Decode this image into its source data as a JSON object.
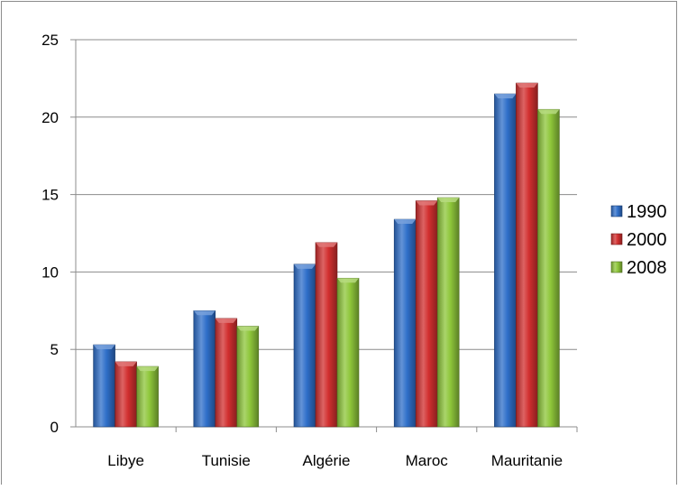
{
  "chart_data": {
    "type": "bar",
    "title": "",
    "xlabel": "",
    "ylabel": "",
    "categories": [
      "Libye",
      "Tunisie",
      "Algérie",
      "Maroc",
      "Mauritanie"
    ],
    "series": [
      {
        "name": "1990",
        "values": [
          5.3,
          7.5,
          10.5,
          13.4,
          21.5
        ],
        "color": "#2f6fc9"
      },
      {
        "name": "2000",
        "values": [
          4.2,
          7.0,
          11.9,
          14.6,
          22.2
        ],
        "color": "#d12f2f"
      },
      {
        "name": "2008",
        "values": [
          3.9,
          6.5,
          9.6,
          14.8,
          20.5
        ],
        "color": "#8ec63a"
      }
    ],
    "ylim": [
      0,
      25
    ],
    "yticks": [
      "0",
      "5",
      "10",
      "15",
      "20",
      "25"
    ],
    "grid": true,
    "legend_position": "right"
  }
}
